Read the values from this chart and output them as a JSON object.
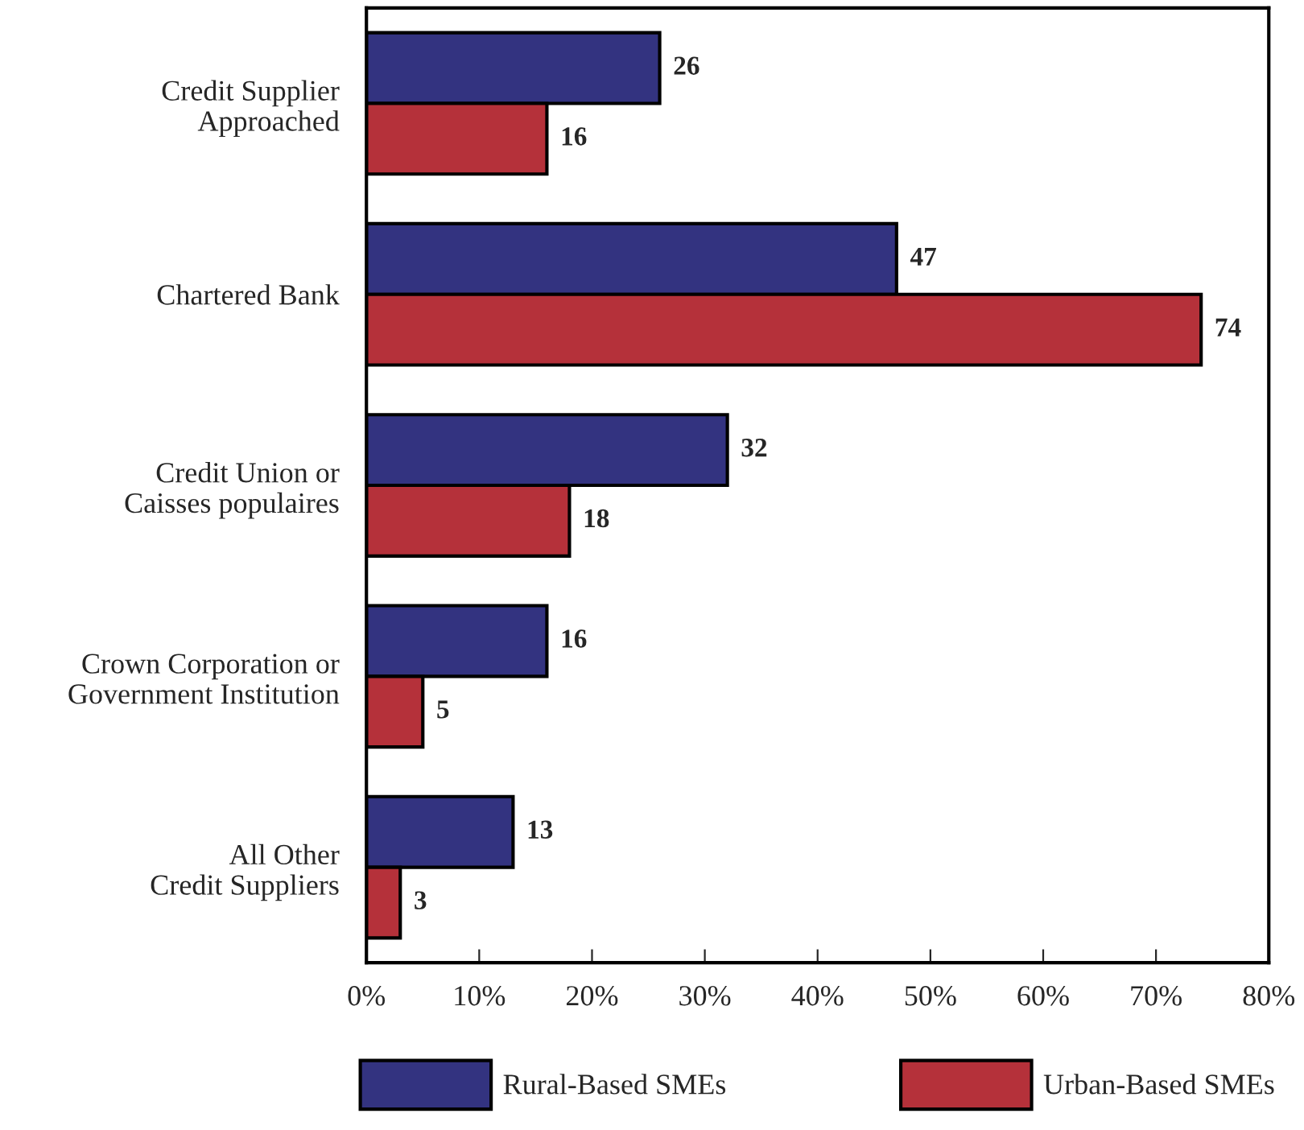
{
  "chart_data": {
    "type": "bar",
    "orientation": "horizontal",
    "categories": [
      "Credit Supplier\nApproached",
      "Chartered Bank",
      "Credit Union or\nCaisses populaires",
      "Crown Corporation or\nGovernment Institution",
      "All Other\nCredit Suppliers"
    ],
    "series": [
      {
        "name": "Rural-Based SMEs",
        "color": "#333380",
        "values": [
          26,
          47,
          32,
          16,
          13
        ]
      },
      {
        "name": "Urban-Based SMEs",
        "color": "#b5313a",
        "values": [
          16,
          74,
          18,
          5,
          3
        ]
      }
    ],
    "xlim": [
      0,
      80
    ],
    "xticks": [
      {
        "value": 0,
        "label": "0%"
      },
      {
        "value": 10,
        "label": "10%"
      },
      {
        "value": 20,
        "label": "20%"
      },
      {
        "value": 30,
        "label": "30%"
      },
      {
        "value": 40,
        "label": "40%"
      },
      {
        "value": 50,
        "label": "50%"
      },
      {
        "value": 60,
        "label": "60%"
      },
      {
        "value": 70,
        "label": "70%"
      },
      {
        "value": 80,
        "label": "80%"
      }
    ],
    "data_labels": true,
    "grid": false,
    "legend": "bottom"
  }
}
